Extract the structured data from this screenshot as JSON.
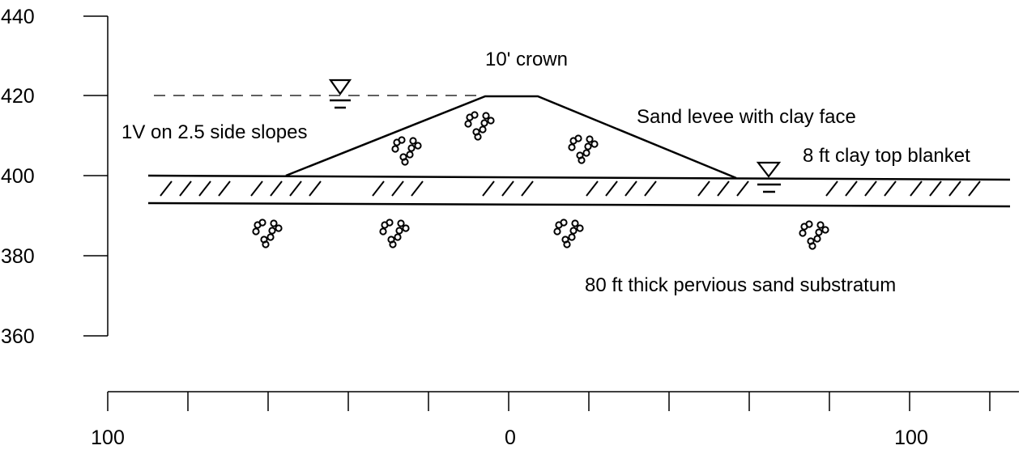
{
  "elevation_axis": {
    "ticks": [
      "440",
      "420",
      "400",
      "380",
      "360"
    ]
  },
  "distance_axis": {
    "ticks": [
      "100",
      "0",
      "100"
    ]
  },
  "annotations": {
    "crown": "10' crown",
    "side_slopes": "1V on 2.5 side slopes",
    "levee": "Sand levee with clay face",
    "blanket": "8 ft clay top blanket",
    "substratum": "80 ft thick pervious sand substratum"
  },
  "icons": {
    "water_level": "water-level-triangle-icon",
    "sand": "sand-pebble-icon",
    "clay": "clay-hatch-icon"
  }
}
